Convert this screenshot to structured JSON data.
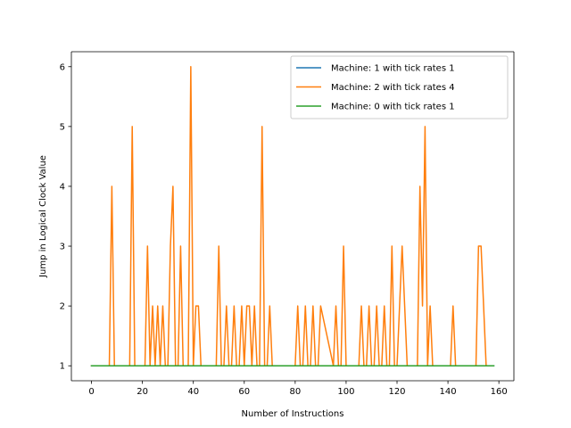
{
  "chart_data": {
    "type": "line",
    "title": "",
    "xlabel": "Number of Instructions",
    "ylabel": "Jump in Logical Clock Value",
    "xlim": [
      -7.9,
      165.9
    ],
    "ylim": [
      0.75,
      6.25
    ],
    "xticks": [
      0,
      20,
      40,
      60,
      80,
      100,
      120,
      140,
      160
    ],
    "yticks": [
      1,
      2,
      3,
      4,
      5,
      6
    ],
    "grid": false,
    "legend_position": "top-right",
    "series": [
      {
        "name": "Machine: 1 with tick rates 1",
        "color": "#1f77b4",
        "x": [
          0,
          158
        ],
        "y": [
          1,
          1
        ]
      },
      {
        "name": "Machine: 2 with tick rates 4",
        "color": "#ff7f0e",
        "x": [
          0,
          7,
          8,
          9,
          15,
          16,
          17,
          21,
          22,
          23,
          24,
          25,
          26,
          27,
          28,
          29,
          30,
          31,
          32,
          33,
          34,
          35,
          36,
          37,
          38,
          39,
          40,
          41,
          42,
          43,
          49,
          50,
          51,
          52,
          53,
          54,
          55,
          56,
          57,
          58,
          59,
          60,
          61,
          62,
          63,
          64,
          65,
          66,
          67,
          68,
          69,
          70,
          71,
          80,
          81,
          82,
          83,
          84,
          85,
          86,
          87,
          88,
          89,
          90,
          95,
          96,
          97,
          98,
          99,
          100,
          105,
          106,
          107,
          108,
          109,
          110,
          111,
          112,
          113,
          114,
          115,
          116,
          117,
          118,
          119,
          120,
          121,
          122,
          123,
          124,
          128,
          129,
          130,
          131,
          132,
          133,
          134,
          141,
          142,
          143,
          151,
          152,
          153,
          154,
          155,
          156,
          157
        ],
        "y": [
          1,
          1,
          4,
          1,
          1,
          5,
          1,
          1,
          3,
          1,
          2,
          1,
          2,
          1,
          2,
          1,
          1,
          3,
          4,
          1,
          1,
          3,
          1,
          1,
          1,
          6,
          1,
          2,
          2,
          1,
          1,
          3,
          1,
          1,
          2,
          1,
          1,
          2,
          1,
          1,
          2,
          1,
          2,
          2,
          1,
          2,
          1,
          1,
          5,
          1,
          1,
          2,
          1,
          1,
          2,
          1,
          1,
          2,
          1,
          1,
          2,
          1,
          1,
          2,
          1,
          2,
          1,
          1,
          3,
          1,
          1,
          2,
          1,
          1,
          2,
          1,
          1,
          2,
          1,
          1,
          2,
          1,
          1,
          3,
          1,
          1,
          2,
          3,
          2,
          1,
          1,
          4,
          2,
          5,
          1,
          2,
          1,
          1,
          2,
          1,
          1,
          3,
          3,
          2,
          1,
          1,
          1
        ]
      },
      {
        "name": "Machine: 0 with tick rates 1",
        "color": "#2ca02c",
        "x": [
          0,
          158
        ],
        "y": [
          1,
          1
        ]
      }
    ]
  }
}
